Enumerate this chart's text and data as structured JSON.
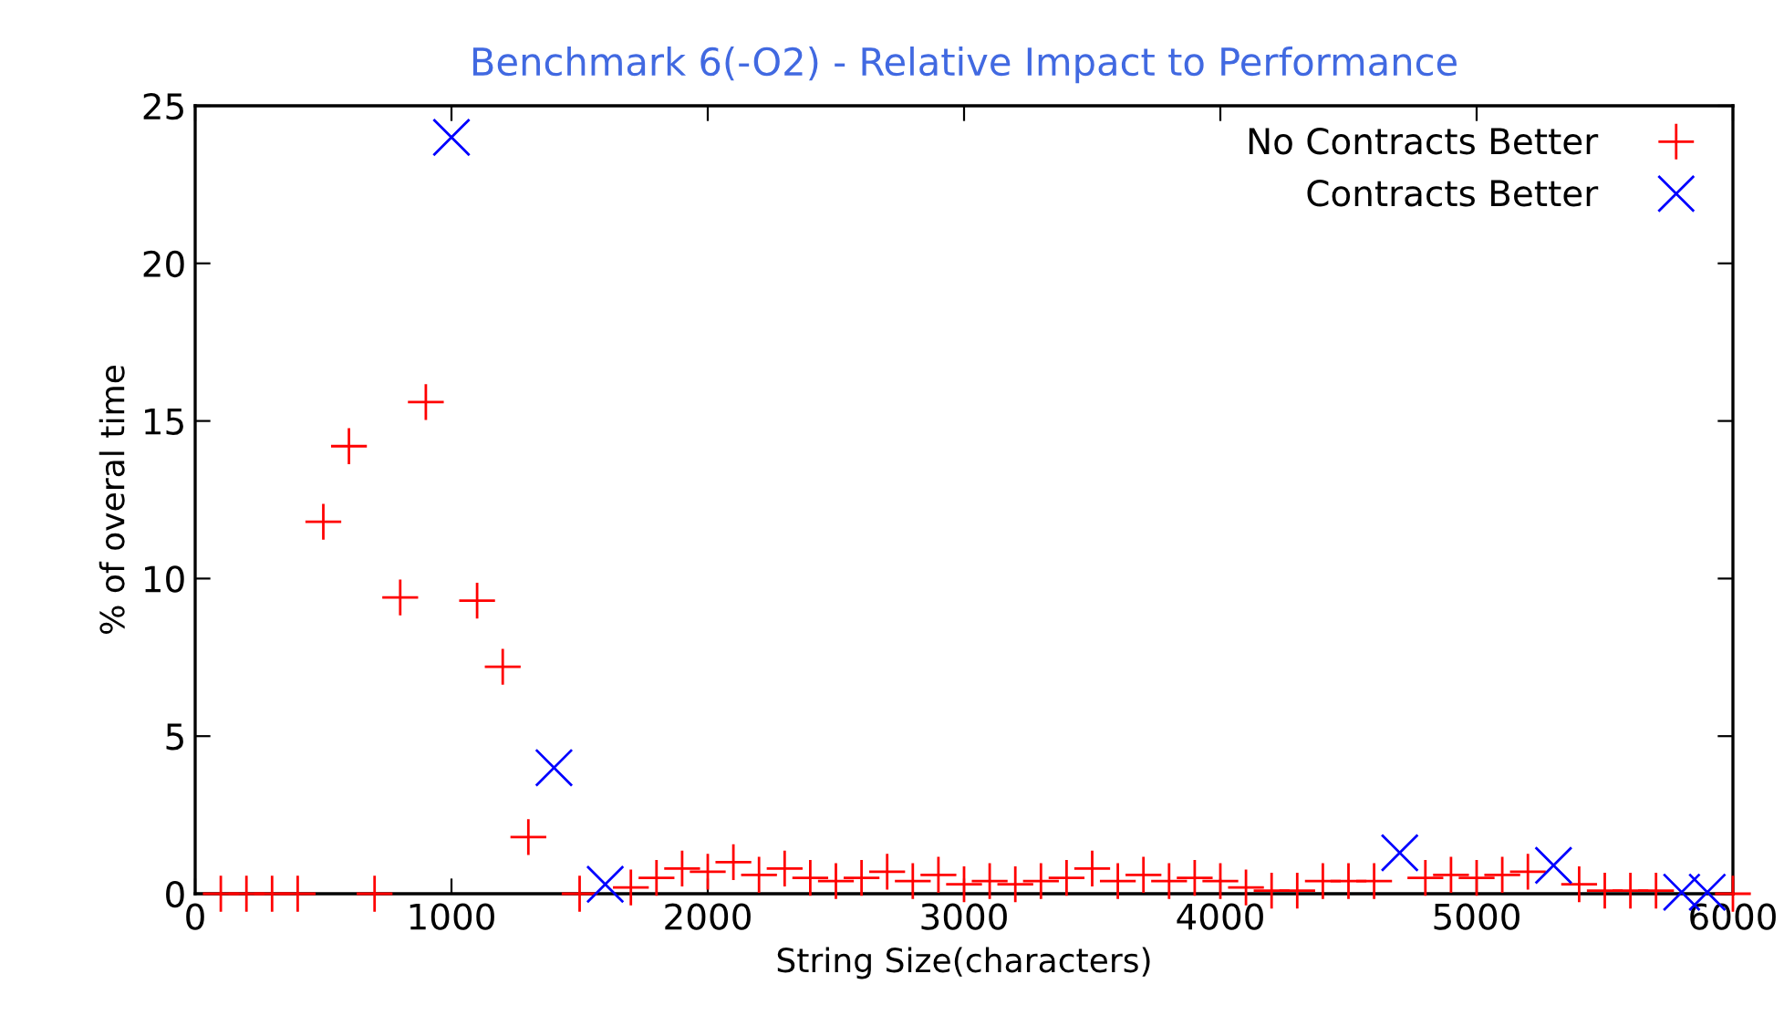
{
  "chart_data": {
    "type": "scatter",
    "title": "Benchmark 6(-O2) - Relative Impact to Performance",
    "xlabel": "String Size(characters)",
    "ylabel": "% of overal time",
    "xlim": [
      0,
      6000
    ],
    "xticks": [
      0,
      1000,
      2000,
      3000,
      4000,
      5000,
      6000
    ],
    "ylim": [
      0,
      25
    ],
    "yticks": [
      0,
      5,
      10,
      15,
      20,
      25
    ],
    "grid": false,
    "legend": "top right",
    "series": [
      {
        "name": "No Contracts Better",
        "color": "#ff0000",
        "marker": "plus",
        "x": [
          100,
          200,
          300,
          400,
          500,
          600,
          700,
          800,
          900,
          1100,
          1200,
          1300,
          1500,
          1700,
          1800,
          1900,
          2000,
          2100,
          2200,
          2300,
          2400,
          2500,
          2600,
          2700,
          2800,
          2900,
          3000,
          3100,
          3200,
          3300,
          3400,
          3500,
          3600,
          3700,
          3800,
          3900,
          4000,
          4100,
          4200,
          4300,
          4400,
          4500,
          4600,
          4800,
          4900,
          5000,
          5100,
          5200,
          5400,
          5500,
          5600,
          5700,
          6000
        ],
        "values": [
          0,
          0,
          0,
          0,
          11.8,
          14.2,
          0,
          9.4,
          15.6,
          9.3,
          7.2,
          1.8,
          0,
          0.2,
          0.5,
          0.8,
          0.7,
          1.0,
          0.6,
          0.8,
          0.5,
          0.4,
          0.5,
          0.7,
          0.4,
          0.6,
          0.3,
          0.4,
          0.3,
          0.4,
          0.5,
          0.8,
          0.4,
          0.6,
          0.4,
          0.5,
          0.4,
          0.2,
          0.1,
          0.1,
          0.4,
          0.4,
          0.4,
          0.5,
          0.6,
          0.5,
          0.6,
          0.7,
          0.3,
          0.1,
          0.1,
          0.1,
          0
        ]
      },
      {
        "name": "Contracts Better",
        "color": "#0000ff",
        "marker": "cross",
        "x": [
          1000,
          1400,
          1600,
          4700,
          5300,
          5800,
          5900
        ],
        "values": [
          24,
          4.0,
          0.3,
          1.3,
          0.9,
          0.05,
          0.05
        ]
      }
    ]
  }
}
